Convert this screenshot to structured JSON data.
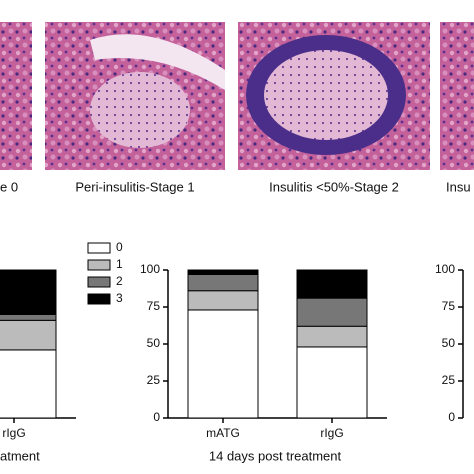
{
  "images": [
    {
      "label": "e 0"
    },
    {
      "label": "Peri-insulitis-Stage 1"
    },
    {
      "label": "Insulitis <50%-Stage 2"
    },
    {
      "label": "Insu"
    }
  ],
  "chart_data": [
    {
      "type": "bar",
      "stacked": true,
      "title": "atment",
      "categories": [
        "rIgG"
      ],
      "ylim": [
        0,
        100
      ],
      "series": [
        {
          "name": "0",
          "color": "#ffffff",
          "values": [
            46
          ]
        },
        {
          "name": "1",
          "color": "#bbbbbb",
          "values": [
            20
          ]
        },
        {
          "name": "2",
          "color": "#777777",
          "values": [
            4
          ]
        },
        {
          "name": "3",
          "color": "#000000",
          "values": [
            30
          ]
        }
      ],
      "legend": "right"
    },
    {
      "type": "bar",
      "stacked": true,
      "title": "14 days post treatment",
      "categories": [
        "mATG",
        "rIgG"
      ],
      "ylim": [
        0,
        100
      ],
      "yticks": [
        0,
        25,
        50,
        75,
        100
      ],
      "series": [
        {
          "color": "#ffffff",
          "values": [
            73,
            48
          ]
        },
        {
          "color": "#bbbbbb",
          "values": [
            13,
            14
          ]
        },
        {
          "color": "#777777",
          "values": [
            11,
            19
          ]
        },
        {
          "color": "#000000",
          "values": [
            3,
            19
          ]
        }
      ]
    },
    {
      "type": "bar",
      "ylim": [
        0,
        100
      ],
      "yticks": [
        0,
        25,
        50,
        75,
        100
      ]
    }
  ]
}
